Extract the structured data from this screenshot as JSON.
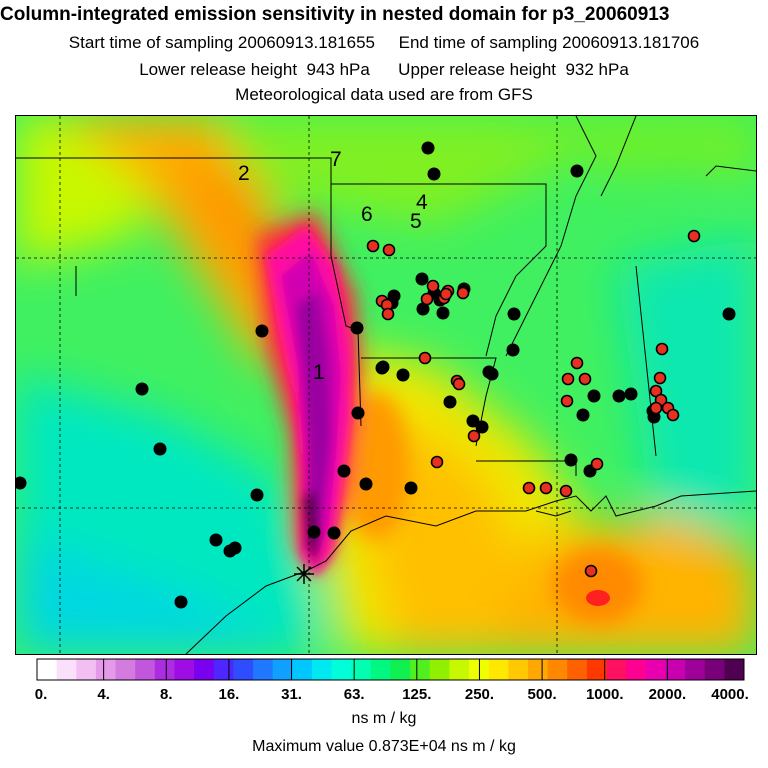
{
  "header": {
    "title": "Column-integrated emission sensitivity in nested domain for p3_20060913",
    "start_label": "Start time of sampling 20060913.181655",
    "end_label": "End time of sampling 20060913.181706",
    "lower_label": "Lower release height  943 hPa",
    "upper_label": "Upper release height  932 hPa",
    "met_label": "Meteorological data used are from GFS"
  },
  "map": {
    "number_labels": [
      "1",
      "2",
      "4",
      "5",
      "6",
      "7"
    ],
    "black_station_count": 46,
    "red_station_count": 33
  },
  "colorbar": {
    "tick_labels": [
      "0.",
      "4.",
      "8.",
      "16.",
      "31.",
      "63.",
      "125.",
      "250.",
      "500.",
      "1000.",
      "2000.",
      "4000."
    ],
    "colors": [
      "#ffffff",
      "#fbe0fb",
      "#f3bff3",
      "#e49ae8",
      "#d47be0",
      "#c256dc",
      "#ac2ce0",
      "#9d0de4",
      "#7a00f0",
      "#4e26ff",
      "#2e4dff",
      "#1f78ff",
      "#10a0ff",
      "#00c8ff",
      "#00e8f0",
      "#00ffd8",
      "#00ffb0",
      "#00f880",
      "#10f050",
      "#50f020",
      "#90f000",
      "#c8f800",
      "#f0ff00",
      "#ffe800",
      "#ffc800",
      "#ffa800",
      "#ff8800",
      "#ff6000",
      "#ff3800",
      "#ff1060",
      "#ff0090",
      "#e800b0",
      "#c800b0",
      "#a0009a",
      "#780078",
      "#500050"
    ],
    "units": "ns m / kg"
  },
  "footer": {
    "max_value": "Maximum value  0.873E+04 ns m / kg"
  }
}
